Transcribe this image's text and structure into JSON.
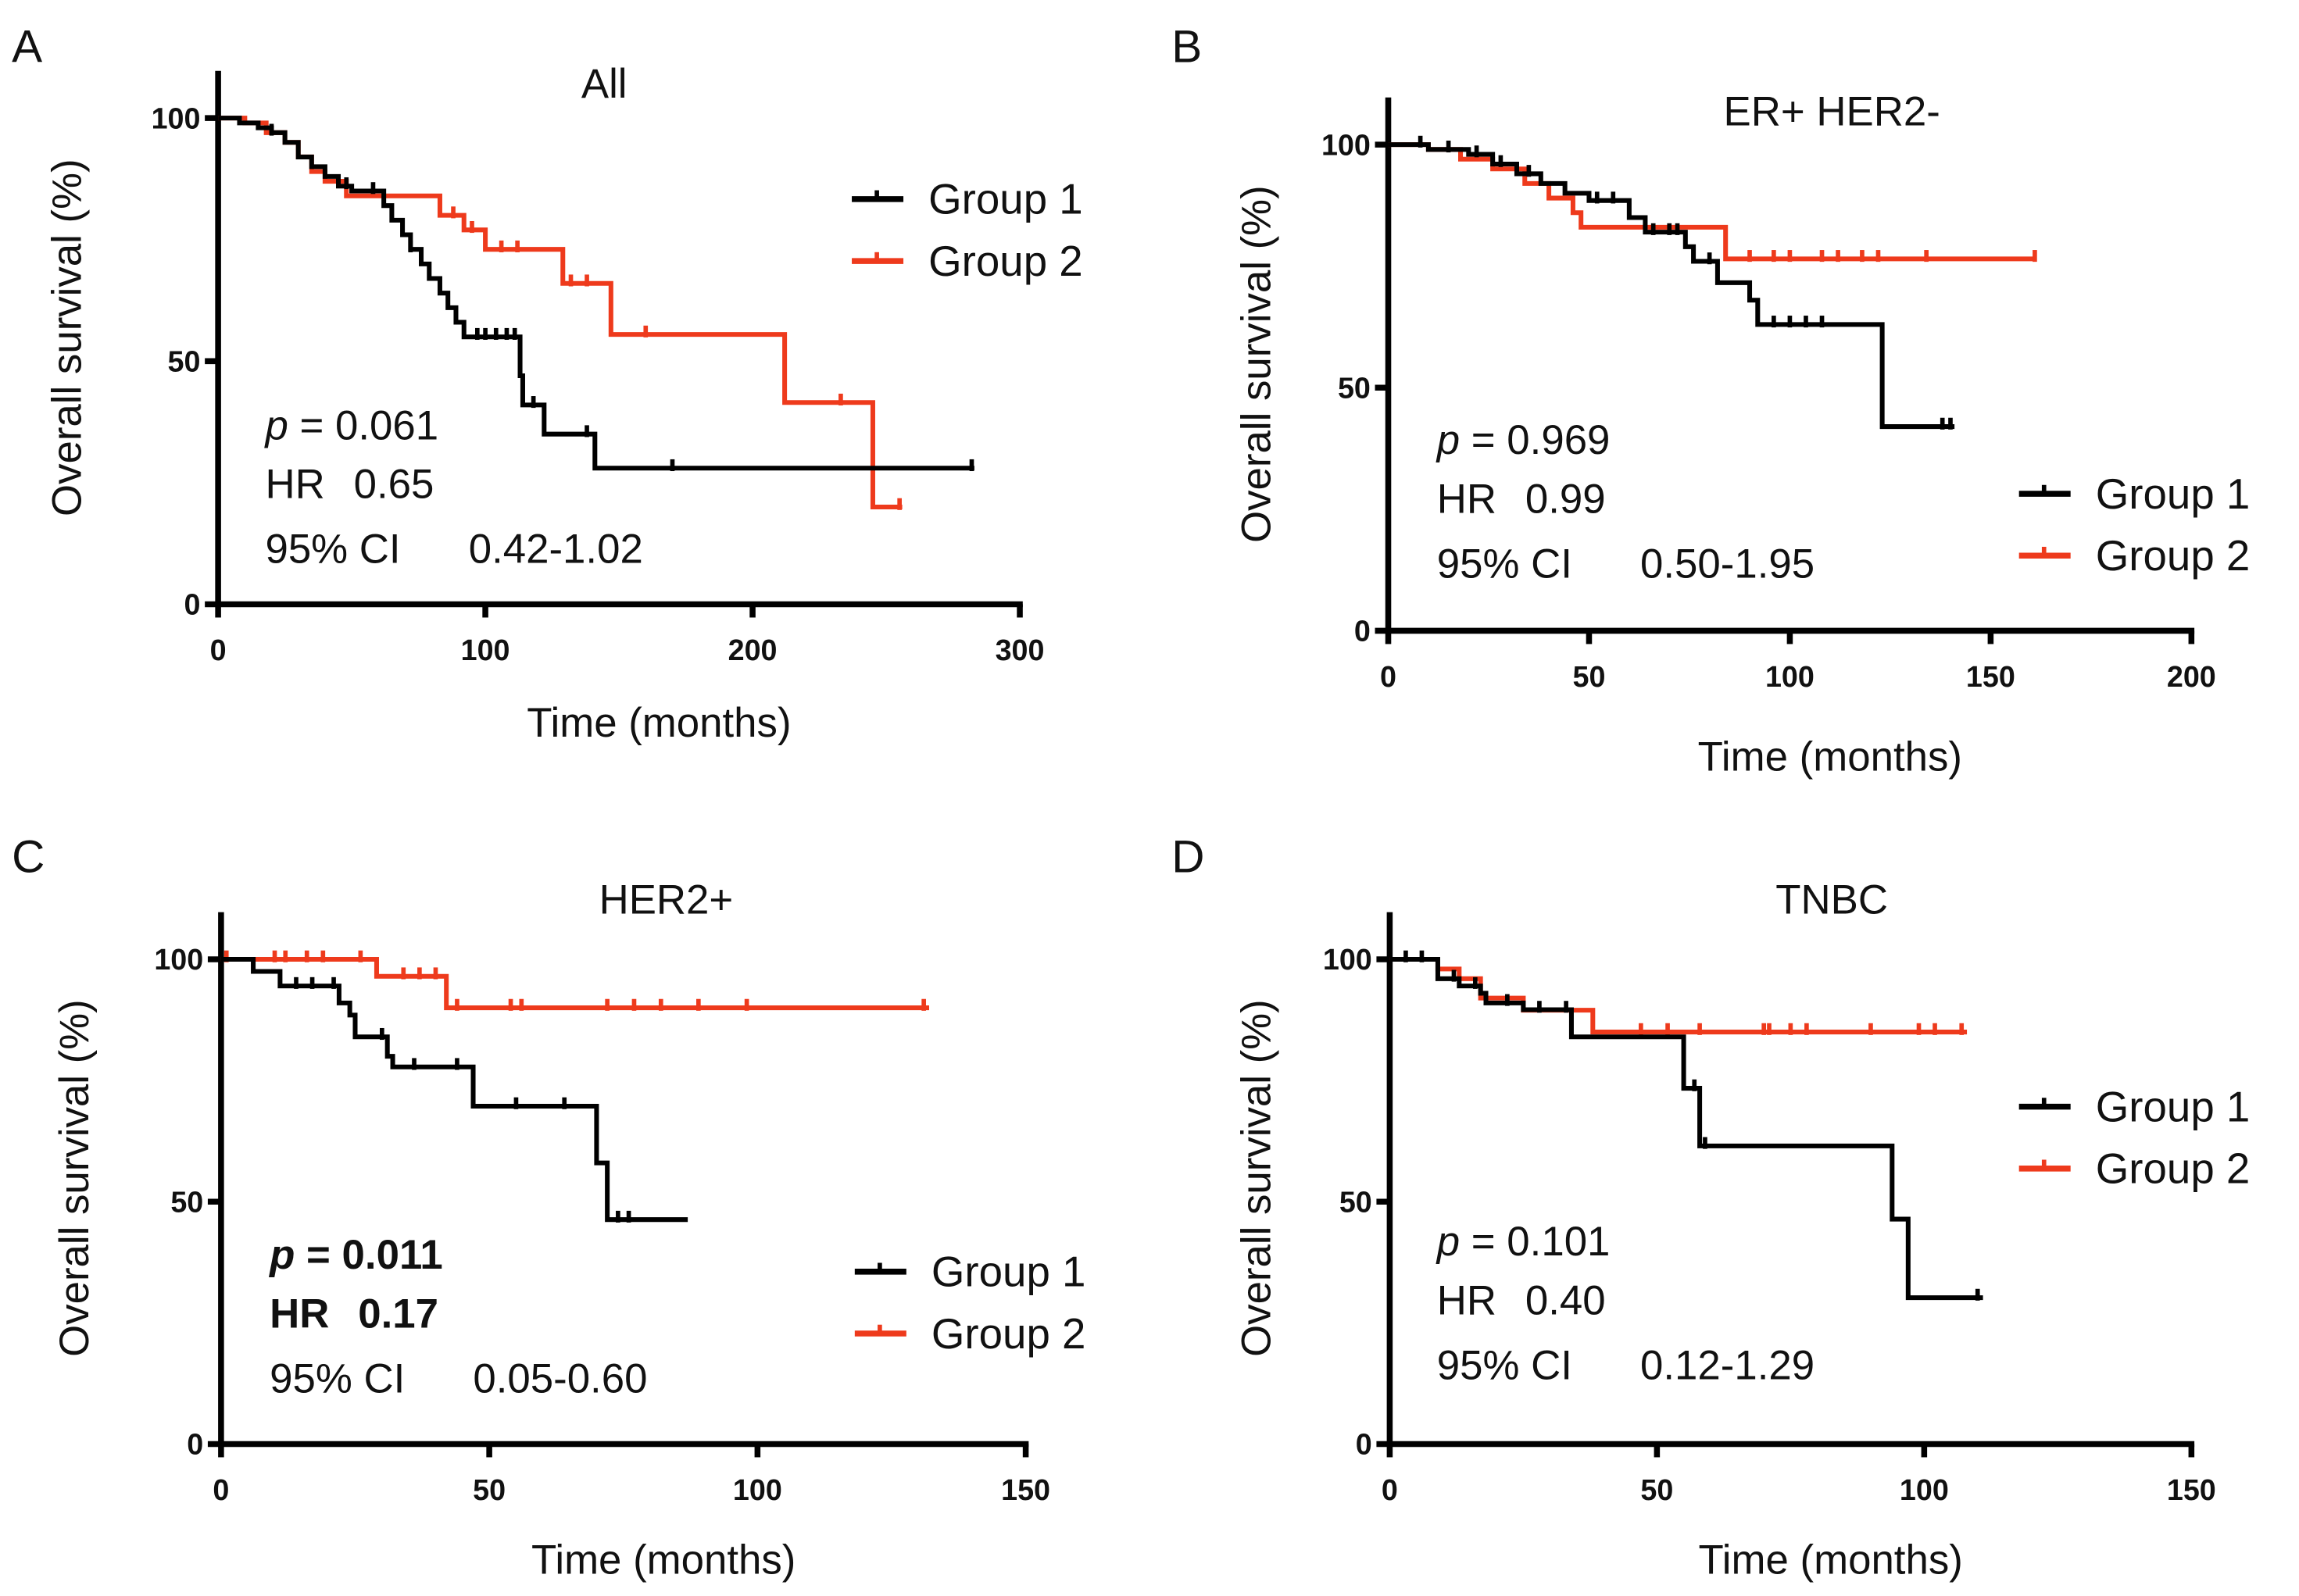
{
  "colors": {
    "group1": "#000000",
    "group2": "#ee3a1c"
  },
  "chart_data": [
    {
      "type": "line",
      "panel": "A",
      "title": "All",
      "xlabel": "Time (months)",
      "ylabel": "Overall survival (%)",
      "xlim": [
        0,
        300
      ],
      "ylim": [
        0,
        100
      ],
      "xticks": [
        "0",
        "100",
        "200",
        "300"
      ],
      "xtick_values": [
        0,
        100,
        200,
        300
      ],
      "yticks": [
        "0",
        "50",
        "100"
      ],
      "ytick_values": [
        0,
        50,
        100
      ],
      "legend": [
        "Group 1",
        "Group 2"
      ],
      "legend_position": "top-right",
      "stats": {
        "p_label": "p",
        "p": " = 0.061",
        "hr_label": "HR",
        "hr": "0.65",
        "ci_label": "95% CI",
        "ci": "0.42-1.02",
        "significant": false
      },
      "series": [
        {
          "name": "Group 1",
          "end": 283,
          "steps": [
            [
              8,
              99
            ],
            [
              15,
              98
            ],
            [
              20,
              97
            ],
            [
              25,
              95
            ],
            [
              30,
              92
            ],
            [
              35,
              90
            ],
            [
              40,
              88
            ],
            [
              45,
              86
            ],
            [
              50,
              85
            ],
            [
              62,
              82
            ],
            [
              65,
              79
            ],
            [
              69,
              76
            ],
            [
              72,
              73
            ],
            [
              76,
              70
            ],
            [
              79,
              67
            ],
            [
              83,
              64
            ],
            [
              86,
              61
            ],
            [
              89,
              58
            ],
            [
              92,
              55
            ],
            [
              113,
              47
            ],
            [
              114,
              41
            ],
            [
              122,
              35
            ],
            [
              141,
              28
            ]
          ],
          "censored": [
            20,
            48,
            58,
            72,
            97,
            100,
            104,
            108,
            111,
            118,
            138,
            170,
            282
          ]
        },
        {
          "name": "Group 2",
          "end": 256,
          "steps": [
            [
              10,
              99
            ],
            [
              18,
              97
            ],
            [
              25,
              95
            ],
            [
              30,
              92
            ],
            [
              35,
              89
            ],
            [
              40,
              87
            ],
            [
              48,
              84
            ],
            [
              83,
              80
            ],
            [
              92,
              77
            ],
            [
              100,
              73
            ],
            [
              129,
              66
            ],
            [
              147,
              55.5
            ],
            [
              212,
              41.5
            ],
            [
              245,
              20
            ]
          ],
          "censored": [
            88,
            95,
            106,
            112,
            132,
            138,
            160,
            233,
            255
          ]
        }
      ]
    },
    {
      "type": "line",
      "panel": "B",
      "title": "ER+ HER2-",
      "xlabel": "Time (months)",
      "ylabel": "Overall survival (%)",
      "xlim": [
        0,
        200
      ],
      "ylim": [
        0,
        100
      ],
      "xticks": [
        "0",
        "50",
        "100",
        "150",
        "200"
      ],
      "xtick_values": [
        0,
        50,
        100,
        150,
        200
      ],
      "yticks": [
        "0",
        "50",
        "100"
      ],
      "ytick_values": [
        0,
        50,
        100
      ],
      "legend": [
        "Group 1",
        "Group 2"
      ],
      "legend_position": "bottom-right",
      "stats": {
        "p_label": "p",
        "p": " = 0.969",
        "hr_label": "HR",
        "hr": "0.99",
        "ci_label": "95% CI",
        "ci": "0.50-1.95",
        "significant": false
      },
      "series": [
        {
          "name": "Group 1",
          "end": 141,
          "steps": [
            [
              10,
              99
            ],
            [
              20,
              98
            ],
            [
              26,
              96
            ],
            [
              32,
              94
            ],
            [
              38,
              92
            ],
            [
              44,
              90
            ],
            [
              50,
              88.5
            ],
            [
              60,
              85
            ],
            [
              64,
              82
            ],
            [
              74,
              79
            ],
            [
              76,
              76
            ],
            [
              82,
              71.6
            ],
            [
              90,
              68
            ],
            [
              92,
              63
            ],
            [
              123,
              42
            ]
          ],
          "censored": [
            8,
            15,
            22,
            28,
            35,
            52,
            56,
            66,
            70,
            72,
            80,
            96,
            100,
            104,
            108,
            138,
            140
          ]
        },
        {
          "name": "Group 2",
          "end": 161,
          "steps": [
            [
              10,
              99
            ],
            [
              18,
              97
            ],
            [
              26,
              95
            ],
            [
              34,
              92
            ],
            [
              40,
              89
            ],
            [
              46,
              86
            ],
            [
              48,
              83
            ],
            [
              84,
              76.5
            ]
          ],
          "censored": [
            90,
            96,
            100,
            108,
            112,
            118,
            122,
            134,
            161
          ]
        }
      ]
    },
    {
      "type": "line",
      "panel": "C",
      "title": "HER2+",
      "xlabel": "Time (months)",
      "ylabel": "Overall survival (%)",
      "xlim": [
        0,
        150
      ],
      "ylim": [
        0,
        100
      ],
      "xticks": [
        "0",
        "50",
        "100",
        "150"
      ],
      "xtick_values": [
        0,
        50,
        100,
        150
      ],
      "yticks": [
        "0",
        "50",
        "100"
      ],
      "ytick_values": [
        0,
        50,
        100
      ],
      "legend": [
        "Group 1",
        "Group 2"
      ],
      "legend_position": "bottom-right",
      "stats": {
        "p_label": "p",
        "p": " = 0.011",
        "hr_label": "HR",
        "hr": "0.17",
        "ci_label": "95% CI",
        "ci": "0.05-0.60",
        "significant": true
      },
      "series": [
        {
          "name": "Group 1",
          "end": 87,
          "steps": [
            [
              6,
              97.5
            ],
            [
              11,
              94.5
            ],
            [
              22,
              91
            ],
            [
              24,
              88.5
            ],
            [
              25,
              84
            ],
            [
              31,
              80
            ],
            [
              32,
              77.8
            ],
            [
              47,
              69.7
            ],
            [
              70,
              58
            ],
            [
              72,
              46.3
            ]
          ],
          "censored": [
            14,
            17,
            21,
            30,
            36,
            44,
            55,
            64,
            74,
            76
          ]
        },
        {
          "name": "Group 2",
          "end": 132,
          "steps": [
            [
              29,
              96.5
            ],
            [
              42,
              90
            ]
          ],
          "censored": [
            1,
            10,
            12,
            16,
            19,
            26,
            34,
            37,
            40,
            44,
            54,
            56,
            72,
            77,
            82,
            89,
            98,
            131
          ]
        }
      ]
    },
    {
      "type": "line",
      "panel": "D",
      "title": "TNBC",
      "xlabel": "Time (months)",
      "ylabel": "Overall survival (%)",
      "xlim": [
        0,
        150
      ],
      "ylim": [
        0,
        100
      ],
      "xticks": [
        "0",
        "50",
        "100",
        "150"
      ],
      "xtick_values": [
        0,
        50,
        100,
        150
      ],
      "yticks": [
        "0",
        "50",
        "100"
      ],
      "ytick_values": [
        0,
        50,
        100
      ],
      "legend": [
        "Group 1",
        "Group 2"
      ],
      "legend_position": "right",
      "stats": {
        "p_label": "p",
        "p": " = 0.101",
        "hr_label": "HR",
        "hr": "0.40",
        "ci_label": "95% CI",
        "ci": "0.12-1.29",
        "significant": false
      },
      "series": [
        {
          "name": "Group 1",
          "end": 111,
          "steps": [
            [
              9,
              96
            ],
            [
              13,
              94.5
            ],
            [
              17,
              93
            ],
            [
              18,
              91
            ],
            [
              25,
              89.6
            ],
            [
              34,
              84
            ],
            [
              55,
              73.4
            ],
            [
              58,
              61.5
            ],
            [
              94,
              46.4
            ],
            [
              97,
              30.2
            ]
          ],
          "censored": [
            3,
            6,
            12,
            16,
            22,
            28,
            33,
            57,
            59,
            110
          ]
        },
        {
          "name": "Group 2",
          "end": 108,
          "steps": [
            [
              9,
              98
            ],
            [
              13,
              96
            ],
            [
              17,
              92
            ],
            [
              25,
              89.5
            ],
            [
              38,
              85
            ]
          ],
          "censored": [
            47,
            52,
            58,
            70,
            71,
            75,
            78,
            90,
            99,
            102,
            107
          ]
        }
      ]
    }
  ]
}
